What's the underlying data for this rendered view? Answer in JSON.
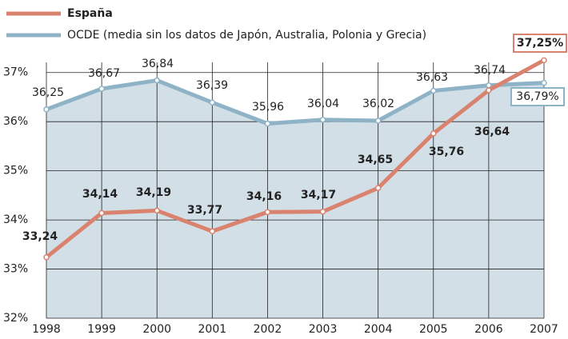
{
  "chart_data": {
    "type": "line",
    "categories": [
      "1998",
      "1999",
      "2000",
      "2001",
      "2002",
      "2003",
      "2004",
      "2005",
      "2006",
      "2007"
    ],
    "series": [
      {
        "name": "España",
        "color": "#d9826e",
        "values": [
          33.24,
          34.14,
          34.19,
          33.77,
          34.16,
          34.17,
          34.65,
          35.76,
          36.64,
          37.25
        ],
        "value_labels": [
          "33,24",
          "34,14",
          "34,19",
          "33,77",
          "34,16",
          "34,17",
          "34,65",
          "35,76",
          "36,64",
          "37,25%"
        ]
      },
      {
        "name": "OCDE (media sin los datos de Japón, Australia, Polonia y Grecia)",
        "color": "#8fb3c6",
        "values": [
          36.25,
          36.67,
          36.84,
          36.39,
          35.96,
          36.04,
          36.02,
          36.63,
          36.74,
          36.79
        ],
        "value_labels": [
          "36,25",
          "36,67",
          "36,84",
          "36,39",
          "35,96",
          "36,04",
          "36,02",
          "36,63",
          "36,74",
          "36,79%"
        ]
      }
    ],
    "ylim": [
      32,
      37.5
    ],
    "yticks": [
      {
        "value": 32,
        "label": "32%"
      },
      {
        "value": 33,
        "label": "33%"
      },
      {
        "value": 34,
        "label": "34%"
      },
      {
        "value": 35,
        "label": "35%"
      },
      {
        "value": 36,
        "label": "36%"
      },
      {
        "value": 37,
        "label": "37%"
      }
    ],
    "grid": true,
    "area_color": "#d3dfe7"
  }
}
